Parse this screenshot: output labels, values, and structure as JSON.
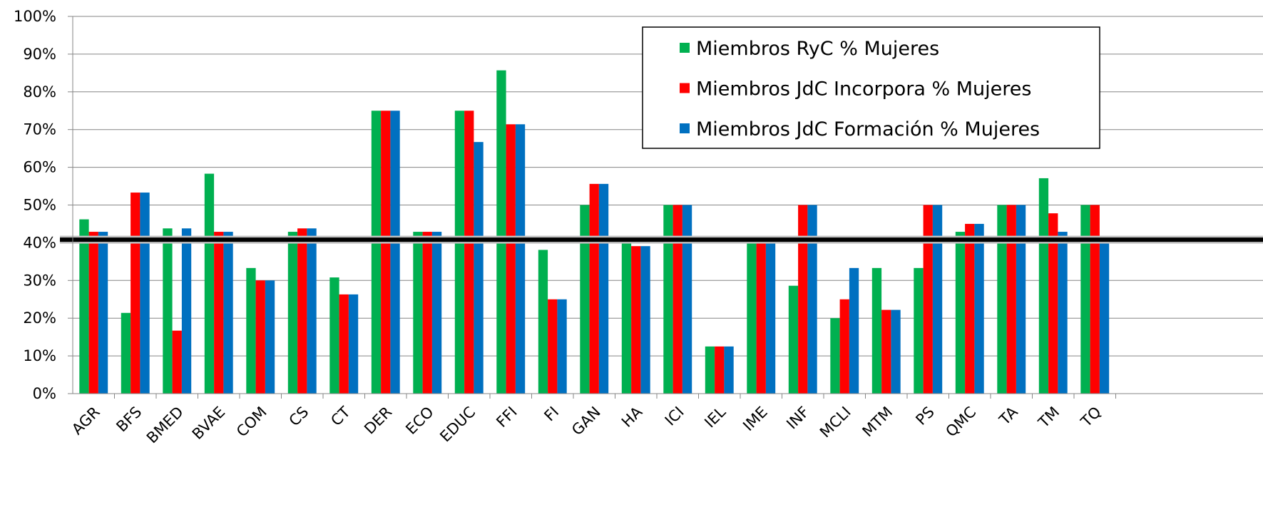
{
  "chart_data": {
    "type": "bar",
    "categories": [
      "AGR",
      "BFS",
      "BMED",
      "BVAE",
      "COM",
      "CS",
      "CT",
      "DER",
      "ECO",
      "EDUC",
      "FFI",
      "FI",
      "GAN",
      "HA",
      "ICI",
      "IEL",
      "IME",
      "INF",
      "MCLI",
      "MTM",
      "PS",
      "QMC",
      "TA",
      "TM",
      "TQ"
    ],
    "series": [
      {
        "name": "Miembros RyC % Mujeres",
        "color": "#00b050",
        "values": [
          46.2,
          21.4,
          43.8,
          58.3,
          33.3,
          42.9,
          30.8,
          75,
          42.9,
          75,
          85.7,
          38.1,
          50,
          40,
          50,
          12.5,
          40,
          28.6,
          20,
          33.3,
          33.3,
          42.9,
          50,
          57.1,
          50
        ]
      },
      {
        "name": "Miembros JdC Incorpora % Mujeres",
        "color": "#ff0000",
        "values": [
          42.9,
          53.3,
          16.7,
          42.9,
          30,
          43.8,
          26.3,
          75,
          42.9,
          75,
          71.4,
          25,
          55.6,
          39.1,
          50,
          12.5,
          40,
          50,
          25,
          22.2,
          50,
          45,
          50,
          47.8,
          50
        ]
      },
      {
        "name": "Miembros JdC Formación % Mujeres",
        "color": "#0070c0",
        "values": [
          42.9,
          53.3,
          43.8,
          42.9,
          30,
          43.8,
          26.3,
          75,
          42.9,
          66.7,
          71.4,
          25,
          55.6,
          39.1,
          50,
          12.5,
          40,
          50,
          33.3,
          22.2,
          50,
          45,
          50,
          42.9,
          41.7
        ]
      }
    ],
    "reference_line": {
      "value": 40.8,
      "color": "#000000"
    },
    "y_ticks": [
      "0%",
      "10%",
      "20%",
      "30%",
      "40%",
      "50%",
      "60%",
      "70%",
      "80%",
      "90%",
      "100%"
    ],
    "ylim": [
      0,
      100
    ],
    "grid": true,
    "legend_position": "top-right"
  }
}
